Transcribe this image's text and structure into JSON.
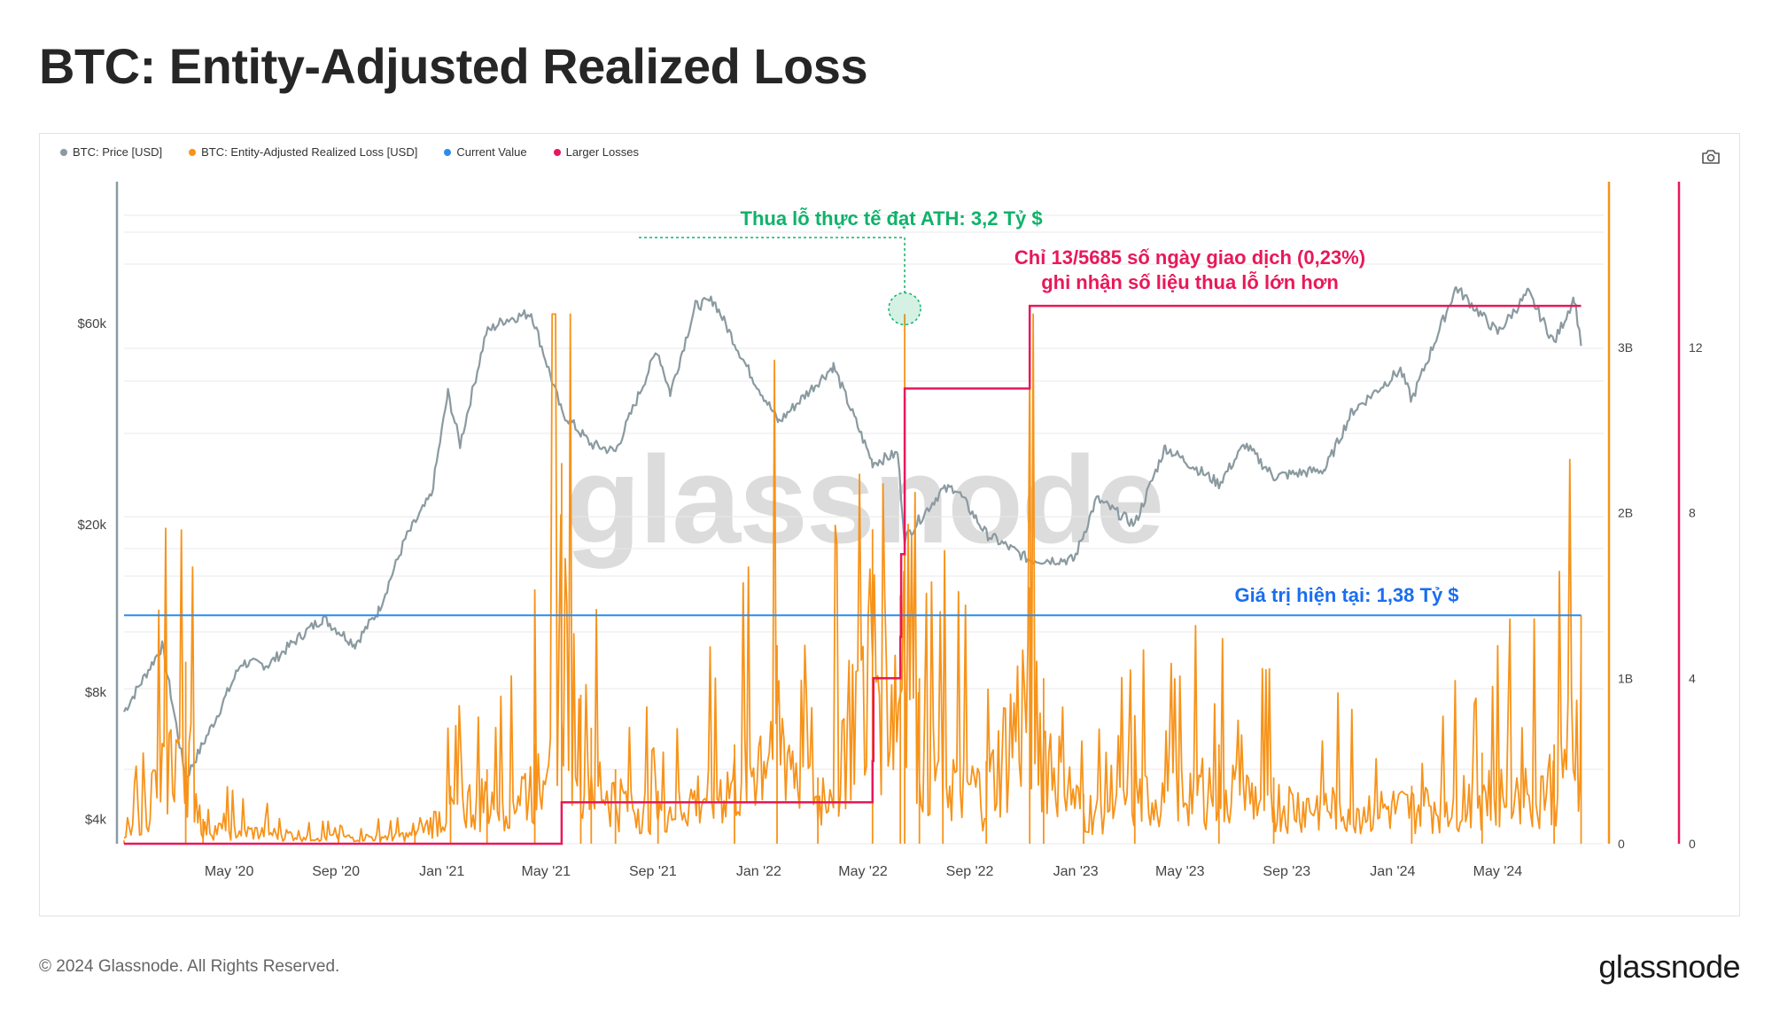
{
  "page": {
    "title": "BTC: Entity-Adjusted Realized Loss",
    "copyright": "© 2024 Glassnode. All Rights Reserved.",
    "brand": "glassnode",
    "watermark": "glassnode"
  },
  "colors": {
    "price": "#8a9aa0",
    "loss": "#f7931a",
    "current": "#2a8cf0",
    "larger": "#e8185a",
    "ann_green": "#10b26a",
    "ann_red": "#e8185a",
    "ann_blue": "#1a6ef0"
  },
  "chart_data": {
    "type": "line",
    "legend": [
      {
        "label": "BTC: Price [USD]",
        "color": "#8a9aa0"
      },
      {
        "label": "BTC: Entity-Adjusted Realized Loss [USD]",
        "color": "#f7931a"
      },
      {
        "label": "Current Value",
        "color": "#2a8cf0"
      },
      {
        "label": "Larger Losses",
        "color": "#e8185a"
      }
    ],
    "legend_position": "top-left",
    "grid": true,
    "x_range": [
      "2020-01-01",
      "2024-08-31"
    ],
    "x_ticks": [
      {
        "label": "May '20",
        "date": "2020-05-01"
      },
      {
        "label": "Sep '20",
        "date": "2020-09-01"
      },
      {
        "label": "Jan '21",
        "date": "2021-01-01"
      },
      {
        "label": "May '21",
        "date": "2021-05-01"
      },
      {
        "label": "Sep '21",
        "date": "2021-09-01"
      },
      {
        "label": "Jan '22",
        "date": "2022-01-01"
      },
      {
        "label": "May '22",
        "date": "2022-05-01"
      },
      {
        "label": "Sep '22",
        "date": "2022-09-01"
      },
      {
        "label": "Jan '23",
        "date": "2023-01-01"
      },
      {
        "label": "May '23",
        "date": "2023-05-01"
      },
      {
        "label": "Sep '23",
        "date": "2023-09-01"
      },
      {
        "label": "Jan '24",
        "date": "2024-01-01"
      },
      {
        "label": "May '24",
        "date": "2024-05-01"
      }
    ],
    "y_price": {
      "scale": "log",
      "range": [
        3500,
        130000
      ],
      "ticks": [
        {
          "label": "$4k",
          "value": 4000
        },
        {
          "label": "$8k",
          "value": 8000
        },
        {
          "label": "$20k",
          "value": 20000
        },
        {
          "label": "$60k",
          "value": 60000
        }
      ]
    },
    "y_loss": {
      "scale": "linear",
      "range": [
        0,
        4000000000
      ],
      "ticks": [
        {
          "label": "0",
          "value": 0
        },
        {
          "label": "1B",
          "value": 1000000000
        },
        {
          "label": "2B",
          "value": 2000000000
        },
        {
          "label": "3B",
          "value": 3000000000
        }
      ]
    },
    "y_count": {
      "scale": "linear",
      "range": [
        0,
        16
      ],
      "ticks": [
        {
          "label": "0",
          "value": 0
        },
        {
          "label": "4",
          "value": 4
        },
        {
          "label": "8",
          "value": 8
        },
        {
          "label": "12",
          "value": 12
        }
      ]
    },
    "series": [
      {
        "name": "BTC: Price [USD]",
        "axis": "price",
        "color": "#8a9aa0",
        "points": [
          [
            "2020-01-01",
            7200
          ],
          [
            "2020-02-14",
            10300
          ],
          [
            "2020-03-12",
            5000
          ],
          [
            "2020-04-15",
            6900
          ],
          [
            "2020-05-15",
            9400
          ],
          [
            "2020-06-15",
            9300
          ],
          [
            "2020-07-25",
            11000
          ],
          [
            "2020-08-17",
            12000
          ],
          [
            "2020-09-23",
            10400
          ],
          [
            "2020-10-20",
            12500
          ],
          [
            "2020-11-20",
            18500
          ],
          [
            "2020-12-20",
            23500
          ],
          [
            "2021-01-08",
            41000
          ],
          [
            "2021-01-22",
            31000
          ],
          [
            "2021-02-21",
            57000
          ],
          [
            "2021-03-13",
            61000
          ],
          [
            "2021-04-14",
            63500
          ],
          [
            "2021-05-19",
            37000
          ],
          [
            "2021-06-22",
            31000
          ],
          [
            "2021-07-20",
            29800
          ],
          [
            "2021-09-06",
            52000
          ],
          [
            "2021-09-21",
            41000
          ],
          [
            "2021-10-20",
            66000
          ],
          [
            "2021-11-10",
            68000
          ],
          [
            "2021-12-20",
            46500
          ],
          [
            "2022-01-24",
            35000
          ],
          [
            "2022-03-28",
            47500
          ],
          [
            "2022-05-12",
            28000
          ],
          [
            "2022-06-10",
            29500
          ],
          [
            "2022-06-18",
            18500
          ],
          [
            "2022-07-30",
            24000
          ],
          [
            "2022-08-15",
            24500
          ],
          [
            "2022-09-20",
            19000
          ],
          [
            "2022-11-09",
            16500
          ],
          [
            "2022-12-30",
            16500
          ],
          [
            "2023-01-25",
            23000
          ],
          [
            "2023-03-10",
            20000
          ],
          [
            "2023-04-14",
            30500
          ],
          [
            "2023-06-15",
            25000
          ],
          [
            "2023-07-15",
            31000
          ],
          [
            "2023-08-17",
            26000
          ],
          [
            "2023-10-15",
            27000
          ],
          [
            "2023-11-15",
            37000
          ],
          [
            "2024-01-10",
            46500
          ],
          [
            "2024-01-23",
            39500
          ],
          [
            "2024-03-14",
            73000
          ],
          [
            "2024-05-01",
            57000
          ],
          [
            "2024-06-05",
            71000
          ],
          [
            "2024-07-05",
            54000
          ],
          [
            "2024-07-28",
            69000
          ],
          [
            "2024-08-05",
            54000
          ]
        ]
      },
      {
        "name": "BTC: Entity-Adjusted Realized Loss [USD]",
        "axis": "loss",
        "color": "#f7931a",
        "points": [
          [
            "2020-01-01",
            20000000
          ],
          [
            "2020-03-12",
            1100000000
          ],
          [
            "2020-04-01",
            150000000
          ],
          [
            "2020-09-04",
            60000000
          ],
          [
            "2020-12-01",
            80000000
          ],
          [
            "2021-01-11",
            350000000
          ],
          [
            "2021-02-22",
            450000000
          ],
          [
            "2021-04-18",
            600000000
          ],
          [
            "2021-05-19",
            2300000000
          ],
          [
            "2021-06-10",
            900000000
          ],
          [
            "2021-06-22",
            700000000
          ],
          [
            "2021-07-20",
            450000000
          ],
          [
            "2021-09-07",
            320000000
          ],
          [
            "2021-12-04",
            600000000
          ],
          [
            "2022-01-22",
            1200000000
          ],
          [
            "2022-03-10",
            400000000
          ],
          [
            "2022-05-12",
            1900000000
          ],
          [
            "2022-06-13",
            1500000000
          ],
          [
            "2022-06-18",
            3200000000
          ],
          [
            "2022-07-05",
            1000000000
          ],
          [
            "2022-08-01",
            700000000
          ],
          [
            "2022-09-20",
            500000000
          ],
          [
            "2022-11-09",
            1550000000
          ],
          [
            "2022-11-25",
            1000000000
          ],
          [
            "2023-01-10",
            300000000
          ],
          [
            "2023-03-10",
            450000000
          ],
          [
            "2023-06-15",
            600000000
          ],
          [
            "2023-08-17",
            400000000
          ],
          [
            "2024-01-23",
            350000000
          ],
          [
            "2024-04-13",
            550000000
          ],
          [
            "2024-07-05",
            600000000
          ],
          [
            "2024-08-05",
            1380000000
          ]
        ]
      },
      {
        "name": "Current Value",
        "axis": "loss",
        "color": "#2a8cf0",
        "points": [
          [
            "2020-01-01",
            1380000000
          ],
          [
            "2024-08-05",
            1380000000
          ]
        ]
      },
      {
        "name": "Larger Losses",
        "axis": "count",
        "color": "#e8185a",
        "step": true,
        "points": [
          [
            "2020-01-01",
            0
          ],
          [
            "2021-05-19",
            1
          ],
          [
            "2022-05-12",
            2
          ],
          [
            "2022-05-13",
            4
          ],
          [
            "2022-06-13",
            5
          ],
          [
            "2022-06-14",
            7
          ],
          [
            "2022-06-18",
            11
          ],
          [
            "2022-11-09",
            13
          ],
          [
            "2024-08-05",
            13
          ]
        ]
      }
    ],
    "annotations": [
      {
        "text": "Thua lỗ thực tế đạt ATH: 3,2 Tỷ $",
        "color": "#10b26a",
        "date": "2022-06-18",
        "value": 3200000000
      },
      {
        "text": "Chỉ 13/5685 số ngày giao dịch (0,23%)",
        "color": "#e8185a"
      },
      {
        "text": "ghi nhận số liệu thua lỗ lớn hơn",
        "color": "#e8185a"
      },
      {
        "text": "Giá trị hiện tại: 1,38 Tỷ $",
        "color": "#1a6ef0"
      }
    ]
  }
}
